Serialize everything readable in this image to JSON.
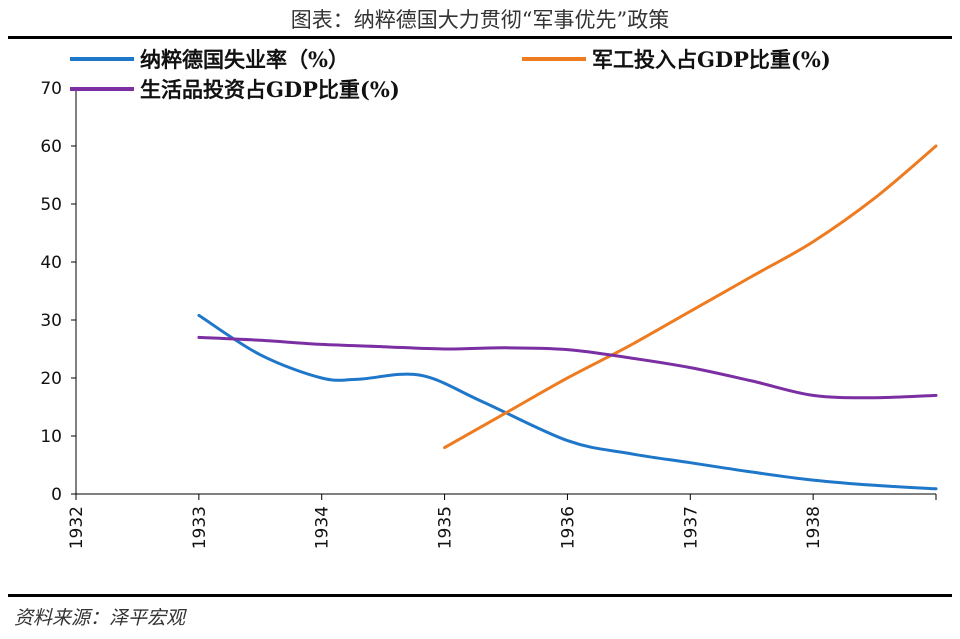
{
  "title": "图表：纳粹德国大力贯彻“军事优先”政策",
  "source": "资料来源：泽平宏观",
  "chart_data": {
    "type": "line",
    "xlim": [
      1932,
      1939
    ],
    "ylim": [
      0,
      70
    ],
    "x_ticks": [
      "1932",
      "1933",
      "1934",
      "1935",
      "1936",
      "1937",
      "1938"
    ],
    "y_ticks": [
      "0",
      "10",
      "20",
      "30",
      "40",
      "50",
      "60",
      "70"
    ],
    "series": [
      {
        "name": "纳粹德国失业率（%）",
        "color": "#1f77c9",
        "x": [
          1933,
          1933.5,
          1934.0,
          1934.3,
          1934.8,
          1935.3,
          1936.0,
          1936.5,
          1937.0,
          1937.5,
          1938.0,
          1938.5,
          1939.0
        ],
        "y": [
          30.8,
          24,
          20,
          19.8,
          20.5,
          16,
          9.2,
          7,
          5.4,
          3.8,
          2.4,
          1.5,
          0.9
        ]
      },
      {
        "name": "军工投入占GDP比重(%)",
        "color": "#ef7b21",
        "x": [
          1935,
          1935.5,
          1936.0,
          1936.5,
          1937.0,
          1937.5,
          1938.0,
          1938.5,
          1939.0
        ],
        "y": [
          8,
          14,
          20,
          25.5,
          31.5,
          37.5,
          43.5,
          51,
          60
        ]
      },
      {
        "name": "生活品投资占GDP比重(%)",
        "color": "#7b2fa3",
        "x": [
          1933,
          1933.5,
          1934.0,
          1934.5,
          1935.0,
          1935.5,
          1936.0,
          1936.5,
          1937.0,
          1937.5,
          1938.0,
          1938.5,
          1939.0
        ],
        "y": [
          27,
          26.5,
          25.8,
          25.4,
          25,
          25.2,
          24.9,
          23.5,
          21.8,
          19.5,
          17,
          16.6,
          17
        ]
      }
    ]
  }
}
